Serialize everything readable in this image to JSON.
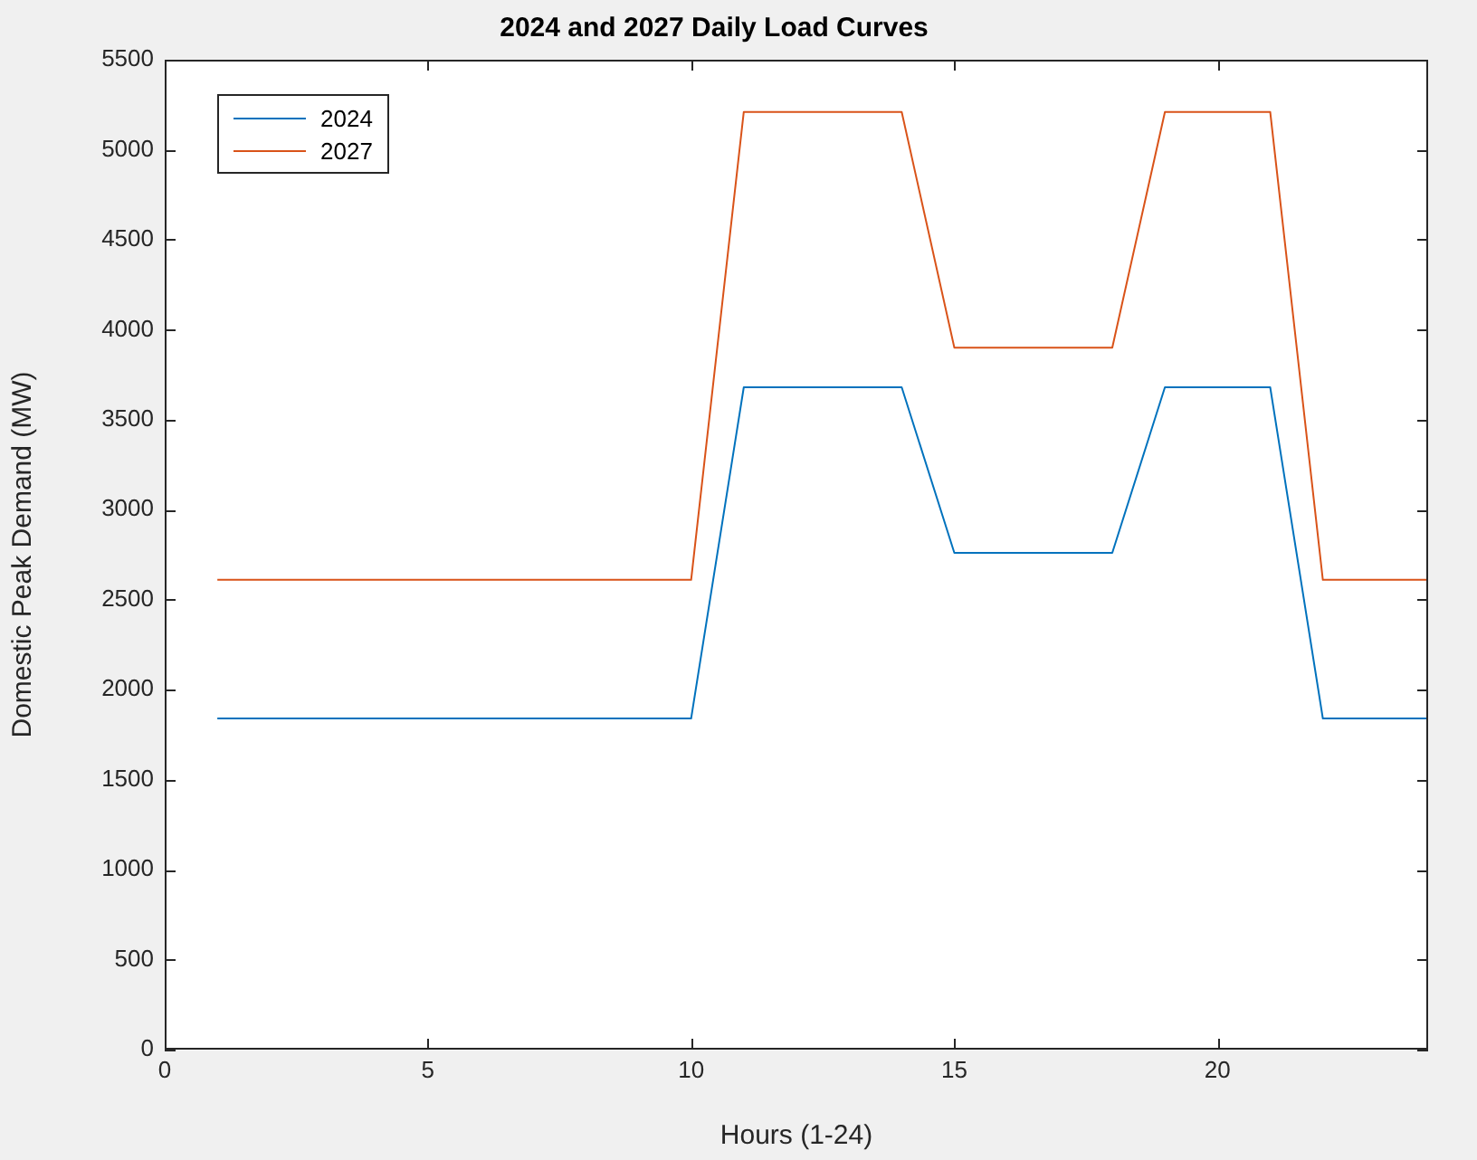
{
  "chart_data": {
    "type": "line",
    "title": "2024 and 2027 Daily Load Curves",
    "xlabel": "Hours (1-24)",
    "ylabel": "Domestic Peak Demand (MW)",
    "x": [
      1,
      2,
      3,
      4,
      5,
      6,
      7,
      8,
      9,
      10,
      11,
      12,
      13,
      14,
      15,
      16,
      17,
      18,
      19,
      20,
      21,
      22,
      23,
      24
    ],
    "series": [
      {
        "name": "2024",
        "color": "#0072bd",
        "values": [
          1840,
          1840,
          1840,
          1840,
          1840,
          1840,
          1840,
          1840,
          1840,
          1840,
          3680,
          3680,
          3680,
          3680,
          2760,
          2760,
          2760,
          2760,
          3680,
          3680,
          3680,
          1840,
          1840,
          1840
        ]
      },
      {
        "name": "2027",
        "color": "#d95319",
        "values": [
          2610,
          2610,
          2610,
          2610,
          2610,
          2610,
          2610,
          2610,
          2610,
          2610,
          5210,
          5210,
          5210,
          5210,
          3900,
          3900,
          3900,
          3900,
          5210,
          5210,
          5210,
          2610,
          2610,
          2610
        ]
      }
    ],
    "xlim": [
      0,
      24
    ],
    "xticks": [
      0,
      5,
      10,
      15,
      20
    ],
    "ylim": [
      0,
      5500
    ],
    "yticks": [
      0,
      500,
      1000,
      1500,
      2000,
      2500,
      3000,
      3500,
      4000,
      4500,
      5000,
      5500
    ],
    "grid": false,
    "legend": "top left",
    "marker": "none",
    "line_style": "solid"
  }
}
